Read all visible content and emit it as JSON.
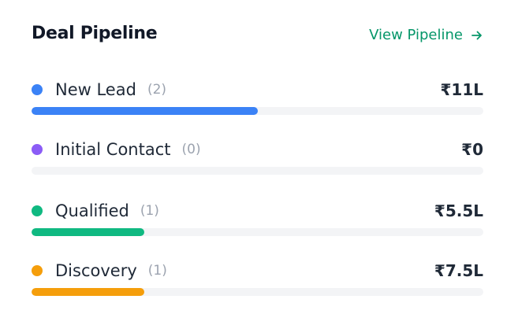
{
  "card": {
    "title": "Deal Pipeline",
    "link_label": "View Pipeline",
    "link_color": "#059669",
    "link_icon": "arrow-right-icon"
  },
  "stages": [
    {
      "name": "New Lead",
      "count": "(2)",
      "value": "₹11L",
      "color": "#3b82f6",
      "fill_fraction": 0.5
    },
    {
      "name": "Initial Contact",
      "count": "(0)",
      "value": "₹0",
      "color": "#8b5cf6",
      "fill_fraction": 0.0
    },
    {
      "name": "Qualified",
      "count": "(1)",
      "value": "₹5.5L",
      "color": "#10b981",
      "fill_fraction": 0.25
    },
    {
      "name": "Discovery",
      "count": "(1)",
      "value": "₹7.5L",
      "color": "#f59e0b",
      "fill_fraction": 0.25
    }
  ]
}
